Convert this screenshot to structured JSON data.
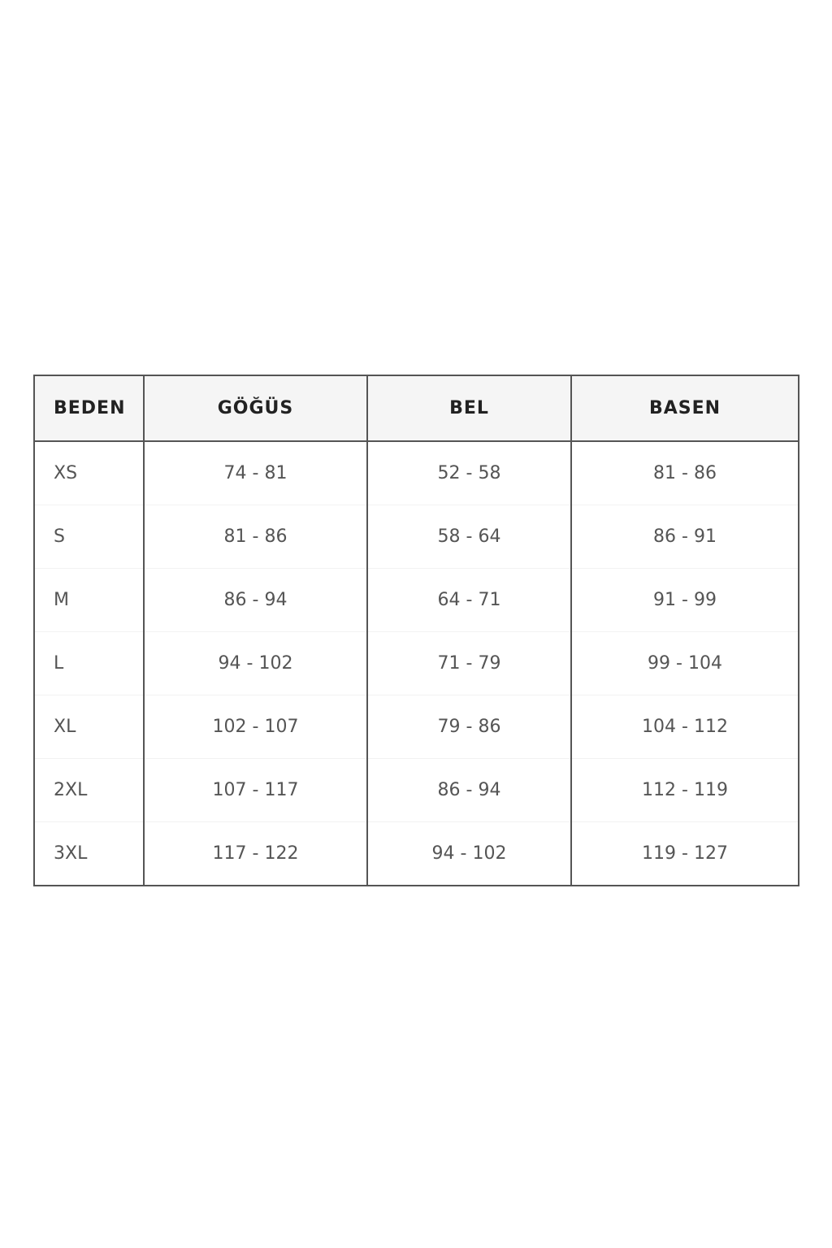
{
  "size_chart": {
    "headers": [
      "BEDEN",
      "GÖĞÜS",
      "BEL",
      "BASEN"
    ],
    "rows": [
      [
        "XS",
        "74 - 81",
        "52 - 58",
        "81 - 86"
      ],
      [
        "S",
        "81 - 86",
        "58 - 64",
        "86 - 91"
      ],
      [
        "M",
        "86 - 94",
        "64 - 71",
        "91 - 99"
      ],
      [
        "L",
        "94 - 102",
        "71 - 79",
        "99 - 104"
      ],
      [
        "XL",
        "102 - 107",
        "79 - 86",
        "104 - 112"
      ],
      [
        "2XL",
        "107 - 117",
        "86 - 94",
        "112 - 119"
      ],
      [
        "3XL",
        "117 - 122",
        "94 - 102",
        "119 - 127"
      ]
    ]
  }
}
